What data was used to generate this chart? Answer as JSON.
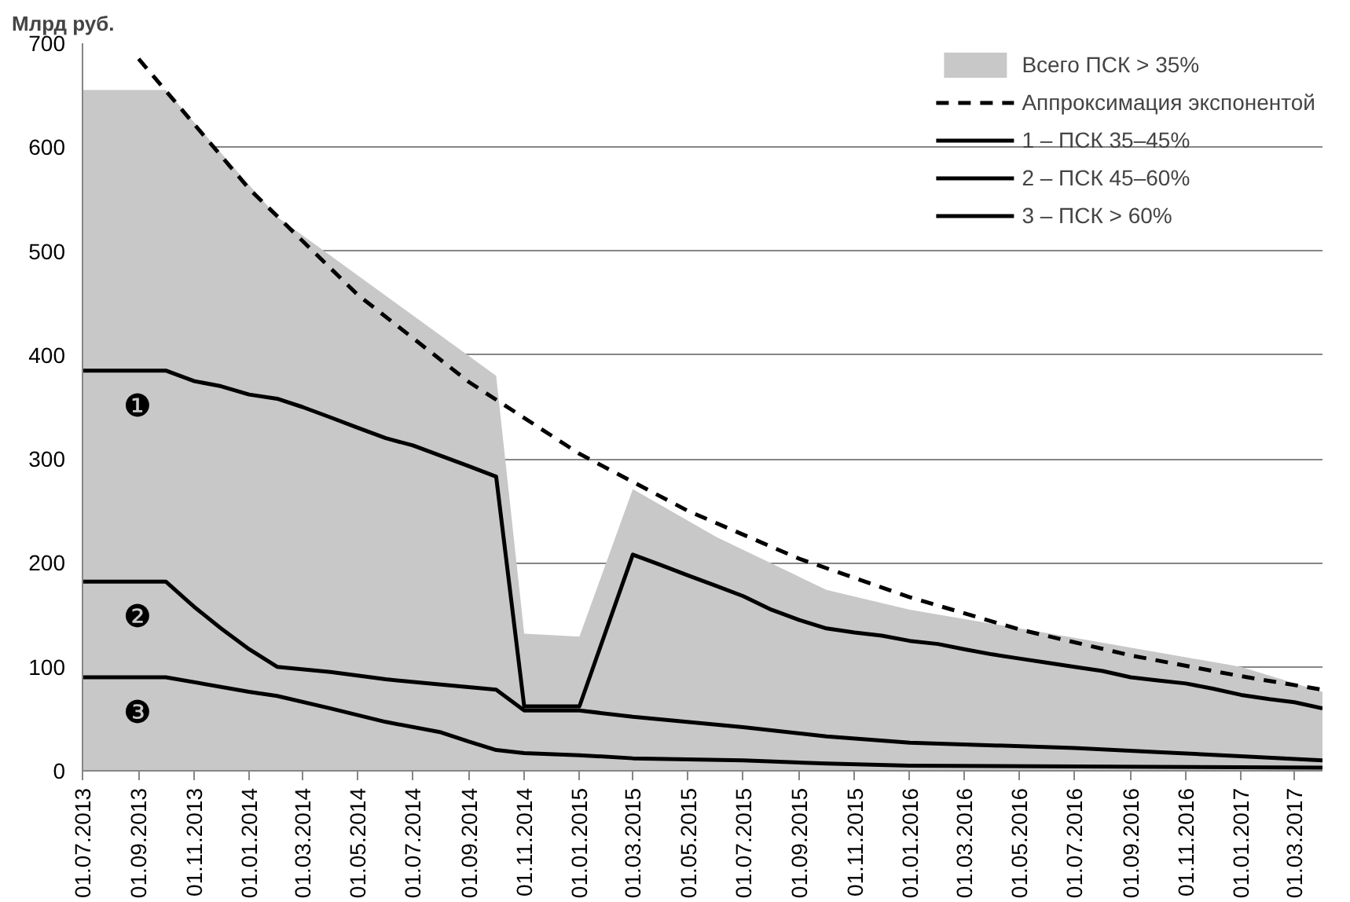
{
  "chart_data": {
    "type": "line",
    "ylabel": "Млрд руб.",
    "xlim": [
      "2013-07-01",
      "2017-04-01"
    ],
    "ylim": [
      0,
      700
    ],
    "yticks": [
      0,
      100,
      200,
      300,
      400,
      500,
      600,
      700
    ],
    "xticks": [
      {
        "value": "2013-07-01",
        "label": "01.07.2013"
      },
      {
        "value": "2013-09-01",
        "label": "01.09.2013"
      },
      {
        "value": "2013-11-01",
        "label": "01.11.2013"
      },
      {
        "value": "2014-01-01",
        "label": "01.01.2014"
      },
      {
        "value": "2014-03-01",
        "label": "01.03.2014"
      },
      {
        "value": "2014-05-01",
        "label": "01.05.2014"
      },
      {
        "value": "2014-07-01",
        "label": "01.07.2014"
      },
      {
        "value": "2014-09-01",
        "label": "01.09.2014"
      },
      {
        "value": "2014-11-01",
        "label": "01.11.2014"
      },
      {
        "value": "2015-01-01",
        "label": "01.01.2015"
      },
      {
        "value": "2015-03-01",
        "label": "01.03.2015"
      },
      {
        "value": "2015-05-01",
        "label": "01.05.2015"
      },
      {
        "value": "2015-07-01",
        "label": "01.07.2015"
      },
      {
        "value": "2015-09-01",
        "label": "01.09.2015"
      },
      {
        "value": "2015-11-01",
        "label": "01.11.2015"
      },
      {
        "value": "2016-01-01",
        "label": "01.01.2016"
      },
      {
        "value": "2016-03-01",
        "label": "01.03.2016"
      },
      {
        "value": "2016-05-01",
        "label": "01.05.2016"
      },
      {
        "value": "2016-07-01",
        "label": "01.07.2016"
      },
      {
        "value": "2016-09-01",
        "label": "01.09.2016"
      },
      {
        "value": "2016-11-01",
        "label": "01.11.2016"
      },
      {
        "value": "2017-01-01",
        "label": "01.01.2017"
      },
      {
        "value": "2017-03-01",
        "label": "01.03.2017"
      }
    ],
    "grid": "y",
    "legend": "top right",
    "series": [
      {
        "type": "area",
        "name": "Всего ПСК > 35%",
        "color": "#c8c8c8",
        "x": [
          "2013-07",
          "2013-10",
          "2014-02",
          "2014-10",
          "2014-11",
          "2015-01",
          "2015-03",
          "2015-06",
          "2015-10",
          "2016-01",
          "2016-07",
          "2017-01",
          "2017-04"
        ],
        "values": [
          655,
          655,
          533,
          380,
          132,
          129,
          271,
          225,
          174,
          155,
          128,
          100,
          76
        ]
      },
      {
        "name": "Аппроксимация экспонентой",
        "color": "#000000",
        "line_style": "dashed",
        "x": [
          "2013-09",
          "2014-01",
          "2014-05",
          "2014-09",
          "2015-01",
          "2015-05",
          "2015-09",
          "2016-01",
          "2016-05",
          "2016-09",
          "2017-01",
          "2017-04"
        ],
        "values": [
          685,
          560,
          458,
          374,
          305,
          250,
          204,
          167,
          136,
          111,
          91,
          78
        ]
      },
      {
        "name": "1 – ПСК 35–45%",
        "color": "#000000",
        "line_style": "solid",
        "x": [
          "2013-07",
          "2013-10",
          "2013-11",
          "2013-12",
          "2014-01",
          "2014-02",
          "2014-03",
          "2014-04",
          "2014-05",
          "2014-06",
          "2014-07",
          "2014-08",
          "2014-09",
          "2014-10",
          "2014-11",
          "2014-12",
          "2015-01",
          "2015-03",
          "2015-04",
          "2015-05",
          "2015-06",
          "2015-07",
          "2015-08",
          "2015-09",
          "2015-10",
          "2015-11",
          "2015-12",
          "2016-01",
          "2016-02",
          "2016-03",
          "2016-04",
          "2016-05",
          "2016-06",
          "2016-07",
          "2016-08",
          "2016-09",
          "2016-10",
          "2016-11",
          "2016-12",
          "2017-01",
          "2017-02",
          "2017-03",
          "2017-04"
        ],
        "values": [
          385,
          385,
          375,
          370,
          362,
          358,
          350,
          340,
          330,
          320,
          313,
          303,
          293,
          283,
          62,
          62,
          62,
          208,
          198,
          188,
          178,
          168,
          155,
          145,
          137,
          133,
          130,
          125,
          122,
          117,
          112,
          108,
          104,
          100,
          96,
          90,
          87,
          84,
          79,
          73,
          69,
          66,
          60
        ]
      },
      {
        "name": "2 – ПСК 45–60%",
        "color": "#000000",
        "line_style": "solid",
        "x": [
          "2013-07",
          "2013-10",
          "2013-11",
          "2013-12",
          "2014-01",
          "2014-02",
          "2014-04",
          "2014-06",
          "2014-08",
          "2014-10",
          "2014-11",
          "2015-01",
          "2015-03",
          "2015-07",
          "2015-10",
          "2016-01",
          "2016-07",
          "2016-10",
          "2017-01",
          "2017-04"
        ],
        "values": [
          182,
          182,
          158,
          137,
          117,
          100,
          95,
          88,
          83,
          78,
          58,
          58,
          52,
          42,
          33,
          27,
          22,
          18,
          14,
          10
        ]
      },
      {
        "name": "3 – ПСК > 60%",
        "color": "#000000",
        "line_style": "solid",
        "x": [
          "2013-07",
          "2013-10",
          "2014-01",
          "2014-02",
          "2014-04",
          "2014-06",
          "2014-08",
          "2014-09",
          "2014-10",
          "2014-11",
          "2015-01",
          "2015-03",
          "2015-07",
          "2015-10",
          "2016-01",
          "2017-04"
        ],
        "values": [
          90,
          90,
          76,
          72,
          60,
          47,
          37,
          28,
          20,
          17,
          15,
          12,
          10,
          7,
          5,
          3
        ]
      }
    ],
    "annotations": [
      "❶",
      "❷",
      "❸"
    ]
  }
}
